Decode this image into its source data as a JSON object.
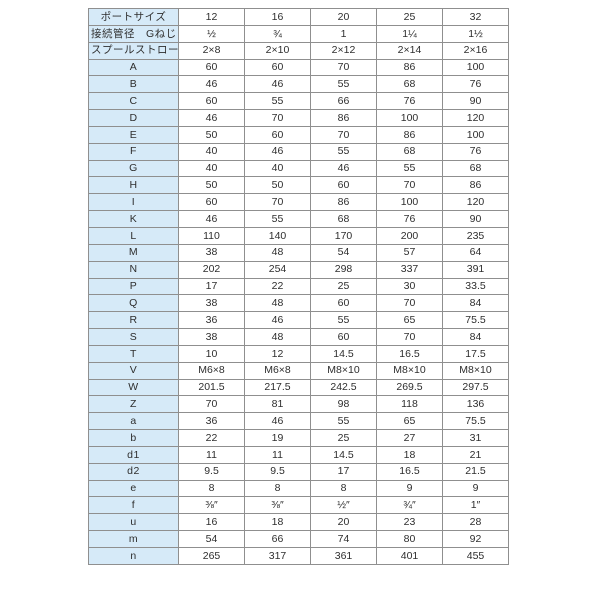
{
  "table": {
    "header_rows": [
      {
        "label": "ポートサイズ",
        "values": [
          "12",
          "16",
          "20",
          "25",
          "32"
        ]
      },
      {
        "label": "接続管径　Gねじ",
        "values": [
          "½",
          "¾",
          "1",
          "1¼",
          "1½"
        ]
      },
      {
        "label": "スプールストローク",
        "values": [
          "2×8",
          "2×10",
          "2×12",
          "2×14",
          "2×16"
        ]
      }
    ],
    "rows": [
      {
        "label": "A",
        "values": [
          "60",
          "60",
          "70",
          "86",
          "100"
        ]
      },
      {
        "label": "B",
        "values": [
          "46",
          "46",
          "55",
          "68",
          "76"
        ]
      },
      {
        "label": "C",
        "values": [
          "60",
          "55",
          "66",
          "76",
          "90"
        ]
      },
      {
        "label": "D",
        "values": [
          "46",
          "70",
          "86",
          "100",
          "120"
        ]
      },
      {
        "label": "E",
        "values": [
          "50",
          "60",
          "70",
          "86",
          "100"
        ]
      },
      {
        "label": "F",
        "values": [
          "40",
          "46",
          "55",
          "68",
          "76"
        ]
      },
      {
        "label": "G",
        "values": [
          "40",
          "40",
          "46",
          "55",
          "68"
        ]
      },
      {
        "label": "H",
        "values": [
          "50",
          "50",
          "60",
          "70",
          "86"
        ]
      },
      {
        "label": "I",
        "values": [
          "60",
          "70",
          "86",
          "100",
          "120"
        ]
      },
      {
        "label": "K",
        "values": [
          "46",
          "55",
          "68",
          "76",
          "90"
        ]
      },
      {
        "label": "L",
        "values": [
          "110",
          "140",
          "170",
          "200",
          "235"
        ]
      },
      {
        "label": "M",
        "values": [
          "38",
          "48",
          "54",
          "57",
          "64"
        ]
      },
      {
        "label": "N",
        "values": [
          "202",
          "254",
          "298",
          "337",
          "391"
        ]
      },
      {
        "label": "P",
        "values": [
          "17",
          "22",
          "25",
          "30",
          "33.5"
        ]
      },
      {
        "label": "Q",
        "values": [
          "38",
          "48",
          "60",
          "70",
          "84"
        ]
      },
      {
        "label": "R",
        "values": [
          "36",
          "46",
          "55",
          "65",
          "75.5"
        ]
      },
      {
        "label": "S",
        "values": [
          "38",
          "48",
          "60",
          "70",
          "84"
        ]
      },
      {
        "label": "T",
        "values": [
          "10",
          "12",
          "14.5",
          "16.5",
          "17.5"
        ]
      },
      {
        "label": "V",
        "values": [
          "M6×8",
          "M6×8",
          "M8×10",
          "M8×10",
          "M8×10"
        ]
      },
      {
        "label": "W",
        "values": [
          "201.5",
          "217.5",
          "242.5",
          "269.5",
          "297.5"
        ]
      },
      {
        "label": "Z",
        "values": [
          "70",
          "81",
          "98",
          "118",
          "136"
        ]
      },
      {
        "label": "a",
        "values": [
          "36",
          "46",
          "55",
          "65",
          "75.5"
        ]
      },
      {
        "label": "b",
        "values": [
          "22",
          "19",
          "25",
          "27",
          "31"
        ]
      },
      {
        "label": "d1",
        "values": [
          "11",
          "11",
          "14.5",
          "18",
          "21"
        ]
      },
      {
        "label": "d2",
        "values": [
          "9.5",
          "9.5",
          "17",
          "16.5",
          "21.5"
        ]
      },
      {
        "label": "e",
        "values": [
          "8",
          "8",
          "8",
          "9",
          "9"
        ]
      },
      {
        "label": "f",
        "values": [
          "⅜″",
          "⅜″",
          "½″",
          "¾″",
          "1″"
        ]
      },
      {
        "label": "u",
        "values": [
          "16",
          "18",
          "20",
          "23",
          "28"
        ]
      },
      {
        "label": "m",
        "values": [
          "54",
          "66",
          "74",
          "80",
          "92"
        ]
      },
      {
        "label": "n",
        "values": [
          "265",
          "317",
          "361",
          "401",
          "455"
        ]
      }
    ]
  },
  "colors": {
    "label_bg": "#d6eaf8",
    "border": "#8f8f8f",
    "text": "#2e2e2e"
  }
}
